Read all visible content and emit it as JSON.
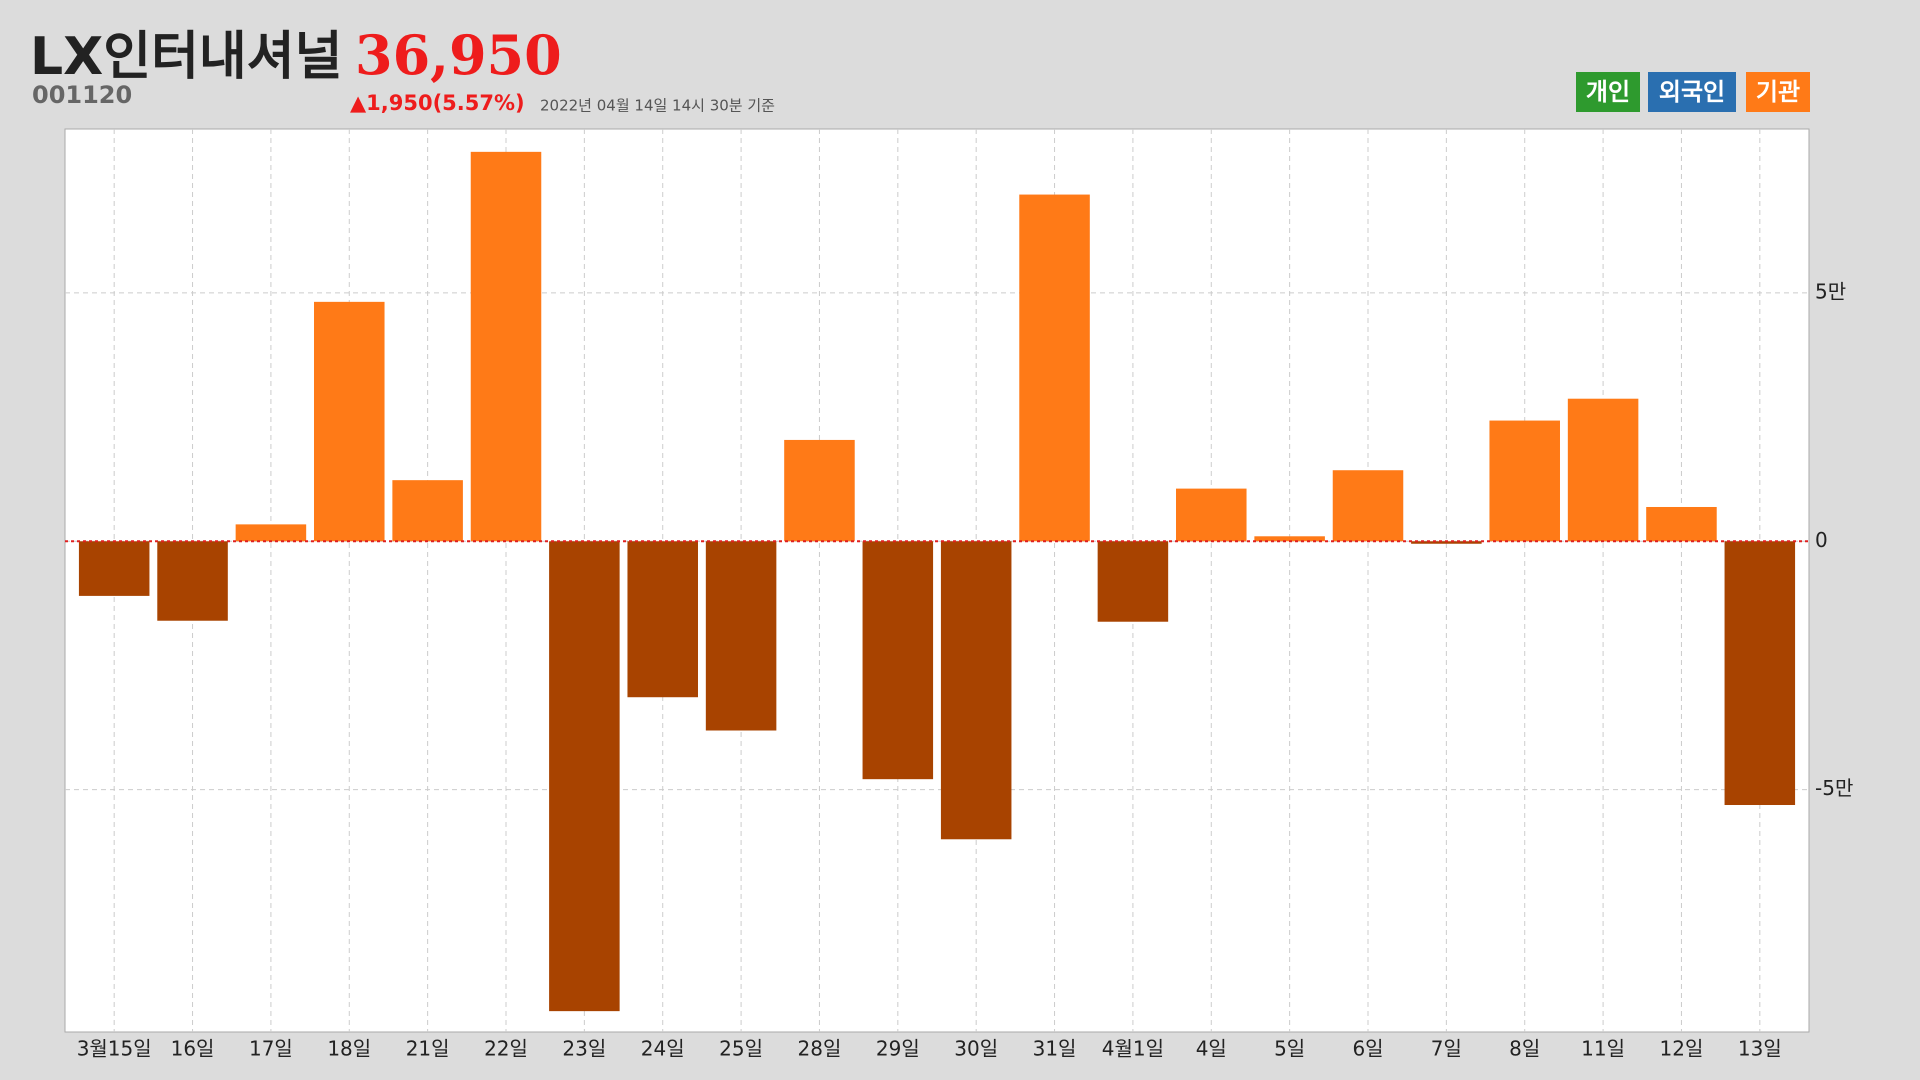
{
  "header": {
    "title": "LX인터내셔널",
    "code": "001120",
    "price": "36,950",
    "change": "▲1,950(5.57%)",
    "timestamp": "2022년 04월 14일 14시 30분 기준"
  },
  "legend_buttons": [
    {
      "label": "개인",
      "color": "#2e9a2e"
    },
    {
      "label": "외국인",
      "color": "#2a6fb0"
    },
    {
      "label": "기관",
      "color": "#ff7a17"
    }
  ],
  "chart_data": {
    "type": "bar",
    "categories": [
      "3월15일",
      "16일",
      "17일",
      "18일",
      "21일",
      "22일",
      "23일",
      "24일",
      "25일",
      "28일",
      "29일",
      "30일",
      "31일",
      "4월1일",
      "4일",
      "5일",
      "6일",
      "7일",
      "8일",
      "11일",
      "12일",
      "13일"
    ],
    "values": [
      -11000,
      -16000,
      3400,
      48200,
      12300,
      78400,
      -94600,
      -31400,
      -38100,
      20400,
      -47900,
      -60000,
      69800,
      -16200,
      10600,
      1000,
      14300,
      -500,
      24300,
      28700,
      6900,
      -53100
    ],
    "color": "#ff7a17",
    "negative_color": "#a84300",
    "ylim": [
      -98800,
      83000
    ],
    "yticks": [
      {
        "value": 50000,
        "label": "5만"
      },
      0,
      {
        "value": -50000,
        "label": "-5만"
      }
    ],
    "grid": true
  }
}
